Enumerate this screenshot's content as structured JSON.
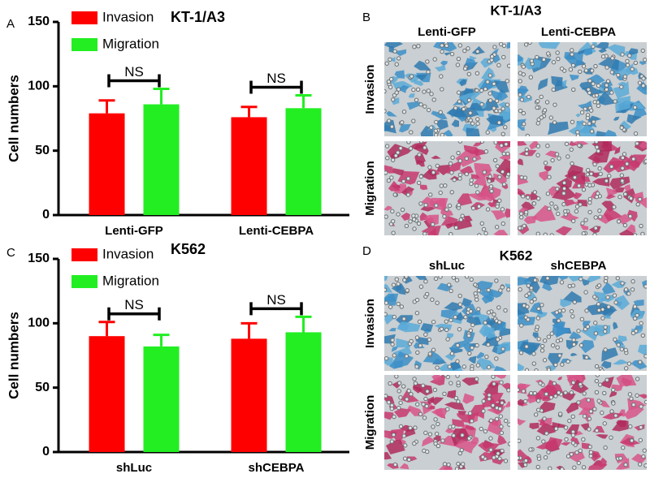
{
  "panel_labels": [
    "A",
    "B",
    "C",
    "D"
  ],
  "chart_data": [
    {
      "type": "bar",
      "title": "KT-1/A3",
      "ylabel": "Cell numbers",
      "categories": [
        "Lenti-GFP",
        "Lenti-CEBPA"
      ],
      "series": [
        {
          "name": "Invasion",
          "color": "#ff0000",
          "values": [
            79,
            76
          ],
          "errors": [
            10,
            8
          ]
        },
        {
          "name": "Migration",
          "color": "#22ee22",
          "values": [
            86,
            83
          ],
          "errors": [
            12,
            10
          ]
        }
      ],
      "ylim": [
        0,
        150
      ],
      "yticks": [
        0,
        50,
        100,
        150
      ],
      "annotations": [
        "NS",
        "NS"
      ],
      "legend": "upper left"
    },
    {
      "type": "bar",
      "title": "K562",
      "ylabel": "Cell numbers",
      "categories": [
        "shLuc",
        "shCEBPA"
      ],
      "series": [
        {
          "name": "Invasion",
          "color": "#ff0000",
          "values": [
            90,
            88
          ],
          "errors": [
            11,
            12
          ]
        },
        {
          "name": "Migration",
          "color": "#22ee22",
          "values": [
            82,
            93
          ],
          "errors": [
            9,
            12
          ]
        }
      ],
      "ylim": [
        0,
        150
      ],
      "yticks": [
        0,
        50,
        100,
        150
      ],
      "annotations": [
        "NS",
        "NS"
      ],
      "legend": "upper left"
    }
  ],
  "image_panels": [
    {
      "title": "KT-1/A3",
      "columns": [
        "Lenti-GFP",
        "Lenti-CEBPA"
      ],
      "rows": [
        "Invasion",
        "Migration"
      ]
    },
    {
      "title": "K562",
      "columns": [
        "shLuc",
        "shCEBPA"
      ],
      "rows": [
        "Invasion",
        "Migration"
      ]
    }
  ]
}
